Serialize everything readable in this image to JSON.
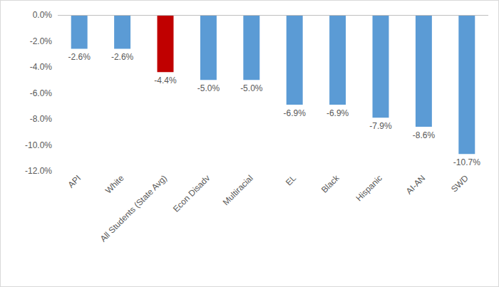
{
  "chart_data": {
    "type": "bar",
    "categories": [
      "API",
      "White",
      "All Students (State Avg)",
      "Econ Disadv",
      "Multiracial",
      "EL",
      "Black",
      "Hispanic",
      "AI-AN",
      "SWD"
    ],
    "values": [
      -2.6,
      -2.6,
      -4.4,
      -5.0,
      -5.0,
      -6.9,
      -6.9,
      -7.9,
      -8.6,
      -10.7
    ],
    "value_labels": [
      "-2.6%",
      "-2.6%",
      "-4.4%",
      "-5.0%",
      "-5.0%",
      "-6.9%",
      "-6.9%",
      "-7.9%",
      "-8.6%",
      "-10.7%"
    ],
    "colors": [
      "#5b9bd5",
      "#5b9bd5",
      "#c00000",
      "#5b9bd5",
      "#5b9bd5",
      "#5b9bd5",
      "#5b9bd5",
      "#5b9bd5",
      "#5b9bd5",
      "#5b9bd5"
    ],
    "ylim": [
      -12,
      0
    ],
    "yticks": [
      {
        "value": 0,
        "label": "0.0%"
      },
      {
        "value": -2,
        "label": "-2.0%"
      },
      {
        "value": -4,
        "label": "-4.0%"
      },
      {
        "value": -6,
        "label": "-6.0%"
      },
      {
        "value": -8,
        "label": "-8.0%"
      },
      {
        "value": -10,
        "label": "-10.0%"
      },
      {
        "value": -12,
        "label": "-12.0%"
      }
    ],
    "grid": false,
    "data_labels": true
  }
}
